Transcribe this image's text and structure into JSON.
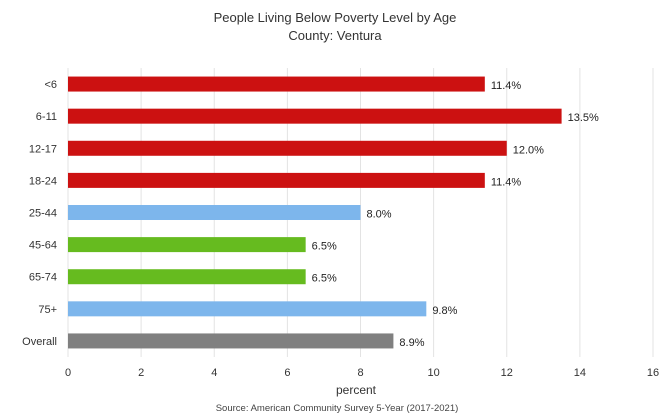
{
  "chart_data": {
    "type": "bar",
    "orientation": "horizontal",
    "title": "People Living Below Poverty Level by Age",
    "subtitle": "County: Ventura",
    "xlabel": "percent",
    "source": "Source: American Community Survey 5-Year (2017-2021)",
    "xlim": [
      0,
      16
    ],
    "xticks": [
      "0",
      "2",
      "4",
      "6",
      "8",
      "10",
      "12",
      "14",
      "16"
    ],
    "grid": true,
    "legend": false,
    "categories": [
      "<6",
      "6-11",
      "12-17",
      "18-24",
      "25-44",
      "45-64",
      "65-74",
      "75+",
      "Overall"
    ],
    "values": [
      11.4,
      13.5,
      12.0,
      11.4,
      8.0,
      6.5,
      6.5,
      9.8,
      8.9
    ],
    "value_labels": [
      "11.4%",
      "13.5%",
      "12.0%",
      "11.4%",
      "8.0%",
      "6.5%",
      "6.5%",
      "9.8%",
      "8.9%"
    ],
    "bar_colors": [
      "#cc1111",
      "#cc1111",
      "#cc1111",
      "#cc1111",
      "#7db6ec",
      "#66bb1f",
      "#66bb1f",
      "#7db6ec",
      "#808080"
    ]
  }
}
